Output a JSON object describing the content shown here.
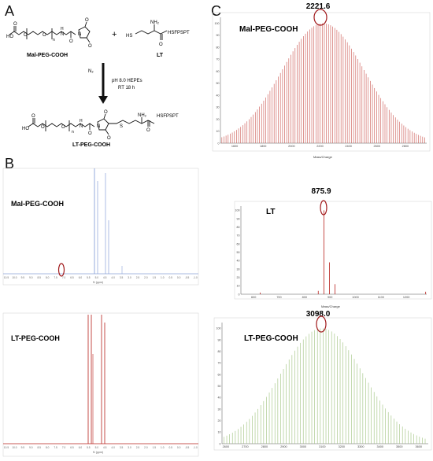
{
  "panels": {
    "a": {
      "letter": "A",
      "reactant1": "Mal-PEG-COOH",
      "reactant2": "LT",
      "product": "LT-PEG-COOH",
      "condition_top": "N₂",
      "condition_mid": "pH 8.0 HEPEs",
      "condition_bottom": "RT 18 h",
      "plus": "+",
      "peptide_seq1": "HSFPSPT",
      "peptide_seq2": "HSFPSPT",
      "hs_label": "HS",
      "nh2_label1": "NH₂",
      "nh2_label2": "NH₂",
      "s_label": "S",
      "n_sub1": "n",
      "n_sub2": "n"
    },
    "b": {
      "letter": "B",
      "spec1_label": "Mal-PEG-COOH",
      "spec2_label": "LT-PEG-COOH",
      "axis_label": "f1 (ppm)"
    },
    "c": {
      "letter": "C",
      "ms1_label": "Mal-PEG-COOH",
      "ms1_peak": "2221.6",
      "ms2_label": "LT",
      "ms2_peak": "875.9",
      "ms3_label": "LT-PEG-COOH",
      "ms3_peak": "3098.0",
      "axis_label": "Mass/Charge"
    }
  },
  "colors": {
    "nmr1": "#8aa2d8",
    "nmr2": "#b8201c",
    "ms1": "#c9504a",
    "ms2": "#b8201c",
    "ms3": "#9cc07a",
    "ellipse": "#a0181a"
  },
  "chart_data": [
    {
      "type": "line",
      "title": "Mal-PEG-COOH",
      "xlabel": "f1 (ppm)",
      "x_ticks": [
        "10.5",
        "10.0",
        "9.5",
        "9.0",
        "8.5",
        "8.0",
        "7.5",
        "7.0",
        "6.5",
        "6.0",
        "5.5",
        "5.0",
        "4.5",
        "4.0",
        "3.5",
        "3.0",
        "2.5",
        "2.0",
        "1.5",
        "1.0",
        "0.5",
        "0.0",
        "-0.5",
        "-1.0"
      ],
      "peaks_ppm": [
        6.7,
        3.6,
        3.4
      ],
      "xlim": [
        10.5,
        -1.0
      ]
    },
    {
      "type": "line",
      "title": "LT-PEG-COOH",
      "xlabel": "f1 (ppm)",
      "x_ticks": [
        "10.5",
        "10.0",
        "9.5",
        "9.0",
        "8.5",
        "8.0",
        "7.5",
        "7.0",
        "6.5",
        "6.0",
        "5.5",
        "5.0",
        "4.5",
        "4.0",
        "3.5",
        "3.0",
        "2.5",
        "2.0",
        "1.5",
        "1.0",
        "0.5",
        "0.0",
        "-0.5",
        "-1.0"
      ],
      "peaks_ppm": [
        3.7,
        3.6,
        3.2,
        3.1
      ],
      "xlim": [
        10.5,
        -1.0
      ]
    },
    {
      "type": "bar",
      "title": "Mal-PEG-COOH",
      "xlabel": "Mass/Charge",
      "x_ticks": [
        "1600",
        "1800",
        "2000",
        "2200",
        "2400",
        "2600",
        "2800"
      ],
      "y_ticks": [
        "0",
        "10",
        "20",
        "30",
        "40",
        "50",
        "60",
        "70",
        "80",
        "90",
        "100"
      ],
      "xlim": [
        1500,
        2950
      ],
      "ylim": [
        0,
        105
      ],
      "annotated_peak": 2221.6
    },
    {
      "type": "bar",
      "title": "LT",
      "xlabel": "Mass/Charge",
      "x_ticks": [
        "600",
        "700",
        "800",
        "900",
        "1000",
        "1100",
        "1200"
      ],
      "y_ticks": [
        "0",
        "10",
        "20",
        "30",
        "40",
        "50",
        "60",
        "70",
        "80",
        "90",
        "100"
      ],
      "xlim": [
        550,
        1280
      ],
      "ylim": [
        0,
        105
      ],
      "annotated_peak": 875.9
    },
    {
      "type": "bar",
      "title": "LT-PEG-COOH",
      "xlabel": "Mass/Charge",
      "x_ticks": [
        "2600",
        "2700",
        "2800",
        "2900",
        "3000",
        "3100",
        "3200",
        "3300",
        "3400",
        "3500",
        "3600"
      ],
      "y_ticks": [
        "0",
        "10",
        "20",
        "30",
        "40",
        "50",
        "60",
        "70",
        "80",
        "90",
        "100"
      ],
      "xlim": [
        2580,
        3650
      ],
      "ylim": [
        0,
        105
      ],
      "annotated_peak": 3098.0
    }
  ]
}
